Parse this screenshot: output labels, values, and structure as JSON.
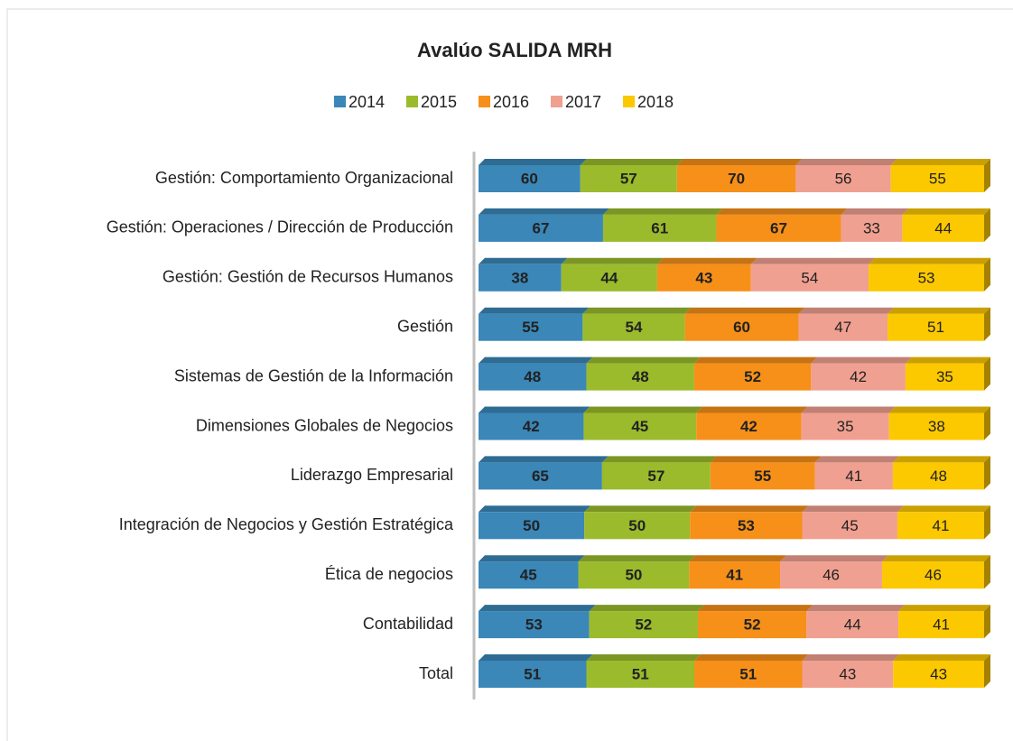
{
  "chart_data": {
    "type": "bar",
    "orientation": "horizontal",
    "stacking": "percent",
    "title": "Avalúo SALIDA MRH",
    "legend": "top",
    "categories": [
      "Gestión: Comportamiento Organizacional",
      "Gestión: Operaciones / Dirección de Producción",
      "Gestión: Gestión de Recursos Humanos",
      "Gestión",
      "Sistemas de Gestión de la Información",
      "Dimensiones Globales de Negocios",
      "Liderazgo Empresarial",
      "Integración de Negocios y Gestión Estratégica",
      "Ética de negocios",
      "Contabilidad",
      "Total"
    ],
    "series": [
      {
        "name": "2014",
        "color": "#3a87b8",
        "values": [
          60,
          67,
          38,
          55,
          48,
          42,
          65,
          50,
          45,
          53,
          51
        ]
      },
      {
        "name": "2015",
        "color": "#9bbb2c",
        "values": [
          57,
          61,
          44,
          54,
          48,
          45,
          57,
          50,
          50,
          52,
          51
        ]
      },
      {
        "name": "2016",
        "color": "#f79019",
        "values": [
          70,
          67,
          43,
          60,
          52,
          42,
          55,
          53,
          41,
          52,
          51
        ]
      },
      {
        "name": "2017",
        "color": "#f0a090",
        "values": [
          56,
          33,
          54,
          47,
          42,
          35,
          41,
          45,
          46,
          44,
          43
        ]
      },
      {
        "name": "2018",
        "color": "#fcc800",
        "values": [
          55,
          44,
          53,
          51,
          35,
          38,
          48,
          41,
          46,
          41,
          43
        ]
      }
    ]
  }
}
